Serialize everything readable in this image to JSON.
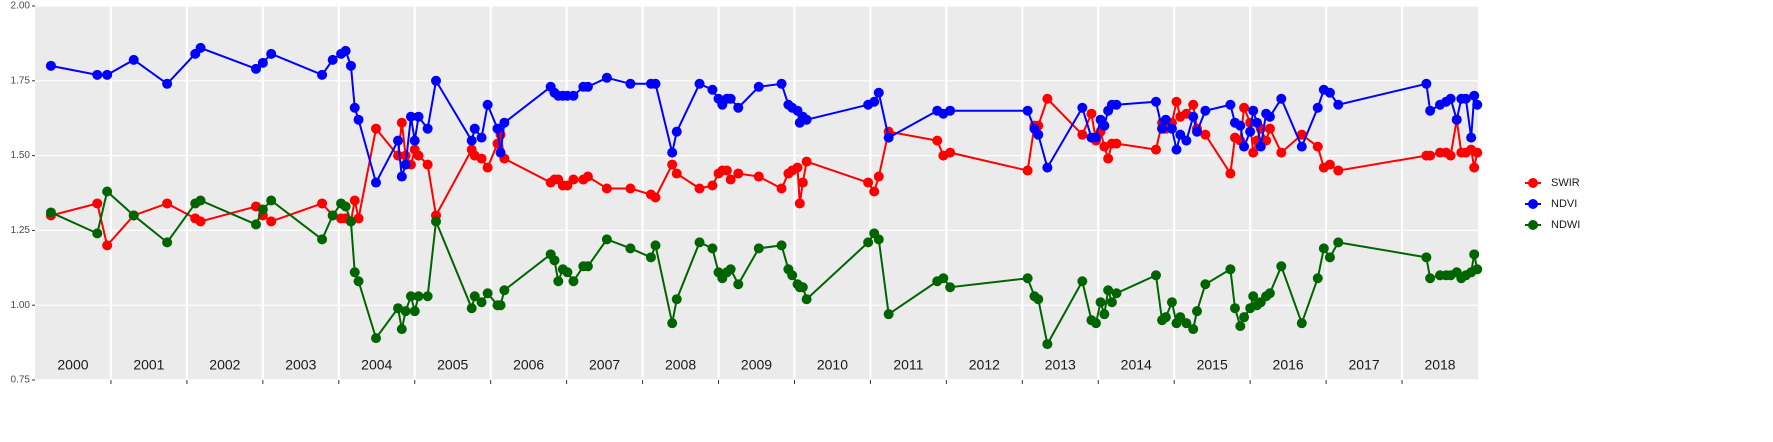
{
  "chart_data": {
    "type": "line",
    "x": [
      2000.21,
      2000.82,
      2000.95,
      2001.3,
      2001.74,
      2002.11,
      2002.18,
      2002.91,
      2003.0,
      2003.11,
      2003.78,
      2003.92,
      2004.03,
      2004.09,
      2004.16,
      2004.21,
      2004.26,
      2004.49,
      2004.78,
      2004.83,
      2004.88,
      2004.95,
      2005.0,
      2005.05,
      2005.17,
      2005.28,
      2005.75,
      2005.79,
      2005.88,
      2005.96,
      2006.09,
      2006.13,
      2006.18,
      2006.79,
      2006.84,
      2006.89,
      2006.95,
      2007.01,
      2007.09,
      2007.22,
      2007.28,
      2007.53,
      2007.84,
      2008.11,
      2008.17,
      2008.39,
      2008.45,
      2008.75,
      2008.92,
      2009.0,
      2009.05,
      2009.11,
      2009.16,
      2009.26,
      2009.53,
      2009.83,
      2009.92,
      2009.97,
      2010.04,
      2010.07,
      2010.11,
      2010.16,
      2010.97,
      2011.05,
      2011.11,
      2011.24,
      2011.88,
      2011.96,
      2012.05,
      2013.07,
      2013.16,
      2013.21,
      2013.33,
      2013.79,
      2013.91,
      2013.97,
      2014.03,
      2014.08,
      2014.13,
      2014.18,
      2014.24,
      2014.76,
      2014.84,
      2014.89,
      2014.97,
      2015.03,
      2015.08,
      2015.16,
      2015.25,
      2015.3,
      2015.41,
      2015.74,
      2015.8,
      2015.87,
      2015.92,
      2016.0,
      2016.04,
      2016.09,
      2016.14,
      2016.21,
      2016.26,
      2016.41,
      2016.68,
      2016.89,
      2016.97,
      2017.05,
      2017.16,
      2018.32,
      2018.37,
      2018.5,
      2018.58,
      2018.64,
      2018.72,
      2018.78,
      2018.84,
      2018.91,
      2018.95,
      2018.99
    ],
    "series": [
      {
        "name": "SWIR",
        "color": "#ff0000",
        "values": [
          1.3,
          1.34,
          1.2,
          1.3,
          1.34,
          1.29,
          1.28,
          1.33,
          1.3,
          1.28,
          1.34,
          1.3,
          1.29,
          1.29,
          1.28,
          1.35,
          1.29,
          1.59,
          1.5,
          1.61,
          1.5,
          1.47,
          1.52,
          1.5,
          1.47,
          1.3,
          1.52,
          1.5,
          1.49,
          1.46,
          1.54,
          1.57,
          1.49,
          1.41,
          1.42,
          1.42,
          1.4,
          1.4,
          1.42,
          1.42,
          1.43,
          1.39,
          1.39,
          1.37,
          1.36,
          1.47,
          1.44,
          1.39,
          1.4,
          1.44,
          1.45,
          1.45,
          1.42,
          1.44,
          1.43,
          1.39,
          1.44,
          1.45,
          1.46,
          1.34,
          1.41,
          1.48,
          1.41,
          1.38,
          1.43,
          1.58,
          1.55,
          1.5,
          1.51,
          1.45,
          1.6,
          1.6,
          1.69,
          1.57,
          1.64,
          1.55,
          1.58,
          1.53,
          1.49,
          1.54,
          1.54,
          1.52,
          1.61,
          1.59,
          1.61,
          1.68,
          1.63,
          1.64,
          1.67,
          1.59,
          1.57,
          1.44,
          1.56,
          1.55,
          1.66,
          1.61,
          1.51,
          1.55,
          1.59,
          1.55,
          1.59,
          1.51,
          1.57,
          1.53,
          1.46,
          1.47,
          1.45,
          1.5,
          1.5,
          1.51,
          1.51,
          1.5,
          1.62,
          1.51,
          1.51,
          1.52,
          1.46,
          1.51
        ]
      },
      {
        "name": "NDVI",
        "color": "#0000ff",
        "values": [
          1.8,
          1.77,
          1.77,
          1.82,
          1.74,
          1.84,
          1.86,
          1.79,
          1.81,
          1.84,
          1.77,
          1.82,
          1.84,
          1.85,
          1.8,
          1.66,
          1.62,
          1.41,
          1.55,
          1.43,
          1.47,
          1.63,
          1.55,
          1.63,
          1.59,
          1.75,
          1.55,
          1.59,
          1.56,
          1.67,
          1.59,
          1.51,
          1.61,
          1.73,
          1.71,
          1.7,
          1.7,
          1.7,
          1.7,
          1.73,
          1.73,
          1.76,
          1.74,
          1.74,
          1.74,
          1.51,
          1.58,
          1.74,
          1.72,
          1.69,
          1.67,
          1.69,
          1.69,
          1.66,
          1.73,
          1.74,
          1.67,
          1.66,
          1.65,
          1.61,
          1.63,
          1.62,
          1.67,
          1.68,
          1.71,
          1.56,
          1.65,
          1.64,
          1.65,
          1.65,
          1.59,
          1.57,
          1.46,
          1.66,
          1.56,
          1.56,
          1.62,
          1.6,
          1.65,
          1.67,
          1.67,
          1.68,
          1.59,
          1.62,
          1.59,
          1.52,
          1.57,
          1.55,
          1.63,
          1.58,
          1.65,
          1.67,
          1.61,
          1.6,
          1.53,
          1.58,
          1.65,
          1.61,
          1.53,
          1.64,
          1.63,
          1.69,
          1.53,
          1.66,
          1.72,
          1.71,
          1.67,
          1.74,
          1.65,
          1.67,
          1.68,
          1.69,
          1.62,
          1.69,
          1.69,
          1.56,
          1.7,
          1.67
        ]
      },
      {
        "name": "NDWI",
        "color": "#006400",
        "values": [
          1.31,
          1.24,
          1.38,
          1.3,
          1.21,
          1.34,
          1.35,
          1.27,
          1.32,
          1.35,
          1.22,
          1.3,
          1.34,
          1.33,
          1.28,
          1.11,
          1.08,
          0.89,
          0.99,
          0.92,
          0.98,
          1.03,
          0.98,
          1.03,
          1.03,
          1.28,
          0.99,
          1.03,
          1.01,
          1.04,
          1.0,
          1.0,
          1.05,
          1.17,
          1.15,
          1.08,
          1.12,
          1.11,
          1.08,
          1.13,
          1.13,
          1.22,
          1.19,
          1.16,
          1.2,
          0.94,
          1.02,
          1.21,
          1.19,
          1.11,
          1.09,
          1.11,
          1.12,
          1.07,
          1.19,
          1.2,
          1.12,
          1.1,
          1.07,
          1.06,
          1.06,
          1.02,
          1.21,
          1.24,
          1.22,
          0.97,
          1.08,
          1.09,
          1.06,
          1.09,
          1.03,
          1.02,
          0.87,
          1.08,
          0.95,
          0.94,
          1.01,
          0.97,
          1.05,
          1.01,
          1.04,
          1.1,
          0.95,
          0.96,
          1.01,
          0.94,
          0.96,
          0.94,
          0.92,
          0.98,
          1.07,
          1.12,
          0.99,
          0.93,
          0.96,
          0.99,
          1.03,
          1.0,
          1.01,
          1.03,
          1.04,
          1.13,
          0.94,
          1.09,
          1.19,
          1.16,
          1.21,
          1.16,
          1.09,
          1.1,
          1.1,
          1.1,
          1.11,
          1.09,
          1.1,
          1.11,
          1.17,
          1.12
        ]
      }
    ],
    "xlim": [
      2000,
      2019
    ],
    "xticks": [
      2001,
      2002,
      2003,
      2004,
      2005,
      2006,
      2007,
      2008,
      2009,
      2010,
      2011,
      2012,
      2013,
      2014,
      2015,
      2016,
      2017,
      2018
    ],
    "year_labels": [
      2000,
      2001,
      2002,
      2003,
      2004,
      2005,
      2006,
      2007,
      2008,
      2009,
      2010,
      2011,
      2012,
      2013,
      2014,
      2015,
      2016,
      2017,
      2018
    ],
    "ylim": [
      0.75,
      2.0
    ],
    "yticks": [
      0.75,
      {
        "value": 1.0,
        "label": "1.00"
      },
      1.25,
      {
        "value": 1.5,
        "label": "1.50"
      },
      1.75,
      {
        "value": 2.0,
        "label": "2.00"
      }
    ],
    "grid": true,
    "legend": "right"
  }
}
